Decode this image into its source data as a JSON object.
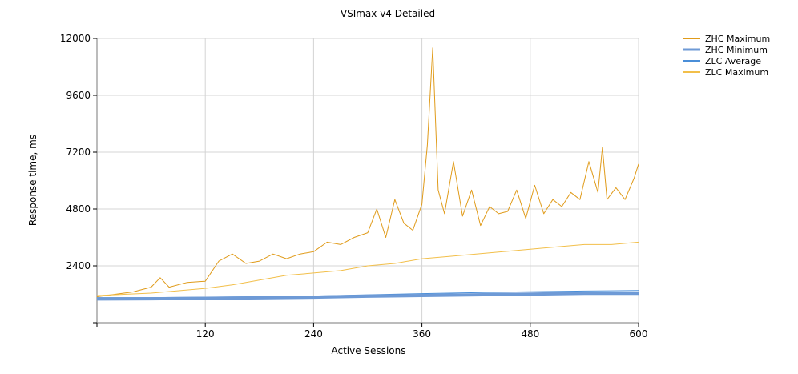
{
  "chart_data": {
    "type": "line",
    "title": "VSImax v4 Detailed",
    "xlabel": "Active Sessions",
    "ylabel": "Response time, ms",
    "xlim": [
      0,
      600
    ],
    "ylim": [
      0,
      12000
    ],
    "x_ticks": [
      120,
      240,
      360,
      480,
      600
    ],
    "y_ticks": [
      2400,
      4800,
      7200,
      9600,
      12000
    ],
    "grid": true,
    "legend_position": "top-right",
    "series": [
      {
        "name": "ZHC Maximum",
        "color": "#E09B1A",
        "stroke": "thin",
        "x": [
          0,
          20,
          40,
          60,
          70,
          80,
          100,
          120,
          135,
          150,
          165,
          180,
          195,
          210,
          225,
          240,
          255,
          270,
          285,
          300,
          310,
          320,
          330,
          340,
          350,
          360,
          366,
          372,
          378,
          385,
          395,
          405,
          415,
          425,
          435,
          445,
          455,
          465,
          475,
          485,
          495,
          505,
          515,
          525,
          535,
          545,
          555,
          560,
          565,
          575,
          585,
          595,
          600
        ],
        "values": [
          1100,
          1200,
          1300,
          1500,
          1900,
          1500,
          1700,
          1750,
          2600,
          2900,
          2500,
          2600,
          2900,
          2700,
          2900,
          3000,
          3400,
          3300,
          3600,
          3800,
          4800,
          3600,
          5200,
          4200,
          3900,
          5000,
          7500,
          11600,
          5600,
          4600,
          6800,
          4500,
          5600,
          4100,
          4900,
          4600,
          4700,
          5600,
          4400,
          5800,
          4600,
          5200,
          4900,
          5500,
          5200,
          6800,
          5500,
          7400,
          5200,
          5700,
          5200,
          6100,
          6700
        ]
      },
      {
        "name": "ZHC Minimum",
        "color": "#6E9AD6",
        "stroke": "thick",
        "x": [
          0,
          60,
          120,
          180,
          240,
          300,
          360,
          420,
          480,
          540,
          600
        ],
        "values": [
          1000,
          1010,
          1030,
          1050,
          1080,
          1120,
          1150,
          1180,
          1210,
          1240,
          1240
        ]
      },
      {
        "name": "ZLC Average",
        "color": "#4A8ED8",
        "stroke": "thin",
        "x": [
          0,
          60,
          120,
          180,
          240,
          300,
          360,
          420,
          480,
          540,
          600
        ],
        "values": [
          1060,
          1060,
          1080,
          1100,
          1130,
          1180,
          1230,
          1270,
          1310,
          1340,
          1360
        ]
      },
      {
        "name": "ZLC Maximum",
        "color": "#F2BF4A",
        "stroke": "thin",
        "x": [
          0,
          60,
          120,
          150,
          180,
          210,
          240,
          270,
          300,
          330,
          360,
          390,
          420,
          450,
          480,
          510,
          540,
          570,
          600
        ],
        "values": [
          1150,
          1250,
          1450,
          1600,
          1800,
          2000,
          2100,
          2200,
          2400,
          2500,
          2700,
          2800,
          2900,
          3000,
          3100,
          3200,
          3300,
          3300,
          3400
        ]
      }
    ]
  }
}
